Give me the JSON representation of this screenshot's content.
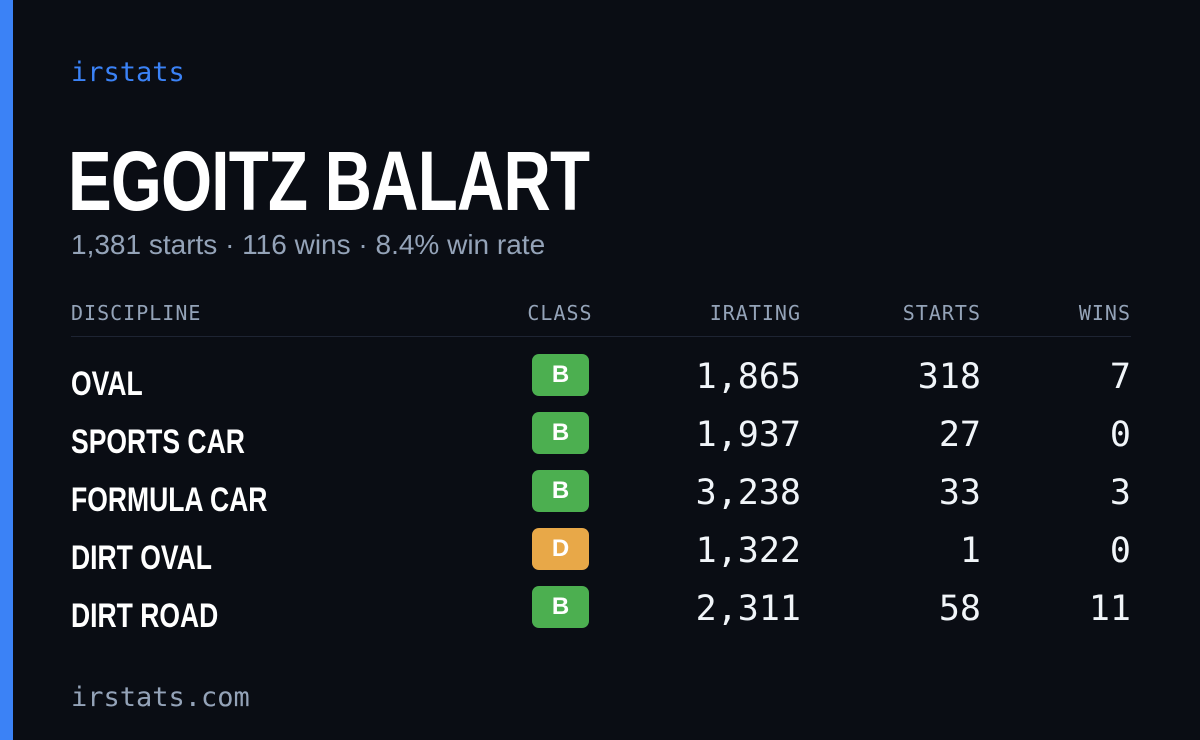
{
  "brand": "irstats",
  "driver": {
    "name": "EGOITZ BALART",
    "summary": "1,381 starts · 116 wins · 8.4% win rate"
  },
  "table": {
    "headers": {
      "discipline": "DISCIPLINE",
      "class": "CLASS",
      "irating": "IRATING",
      "starts": "STARTS",
      "wins": "WINS"
    },
    "rows": [
      {
        "discipline": "OVAL",
        "class": "B",
        "class_color": "#4caf50",
        "irating": "1,865",
        "starts": "318",
        "wins": "7"
      },
      {
        "discipline": "SPORTS CAR",
        "class": "B",
        "class_color": "#4caf50",
        "irating": "1,937",
        "starts": "27",
        "wins": "0"
      },
      {
        "discipline": "FORMULA CAR",
        "class": "B",
        "class_color": "#4caf50",
        "irating": "3,238",
        "starts": "33",
        "wins": "3"
      },
      {
        "discipline": "DIRT OVAL",
        "class": "D",
        "class_color": "#e8a848",
        "irating": "1,322",
        "starts": "1",
        "wins": "0"
      },
      {
        "discipline": "DIRT ROAD",
        "class": "B",
        "class_color": "#4caf50",
        "irating": "2,311",
        "starts": "58",
        "wins": "11"
      }
    ]
  },
  "footer": "irstats.com",
  "colors": {
    "accent": "#3b82f6",
    "background": "#0a0d14",
    "muted_text": "#94a3b8",
    "class_b": "#4caf50",
    "class_d": "#e8a848"
  }
}
